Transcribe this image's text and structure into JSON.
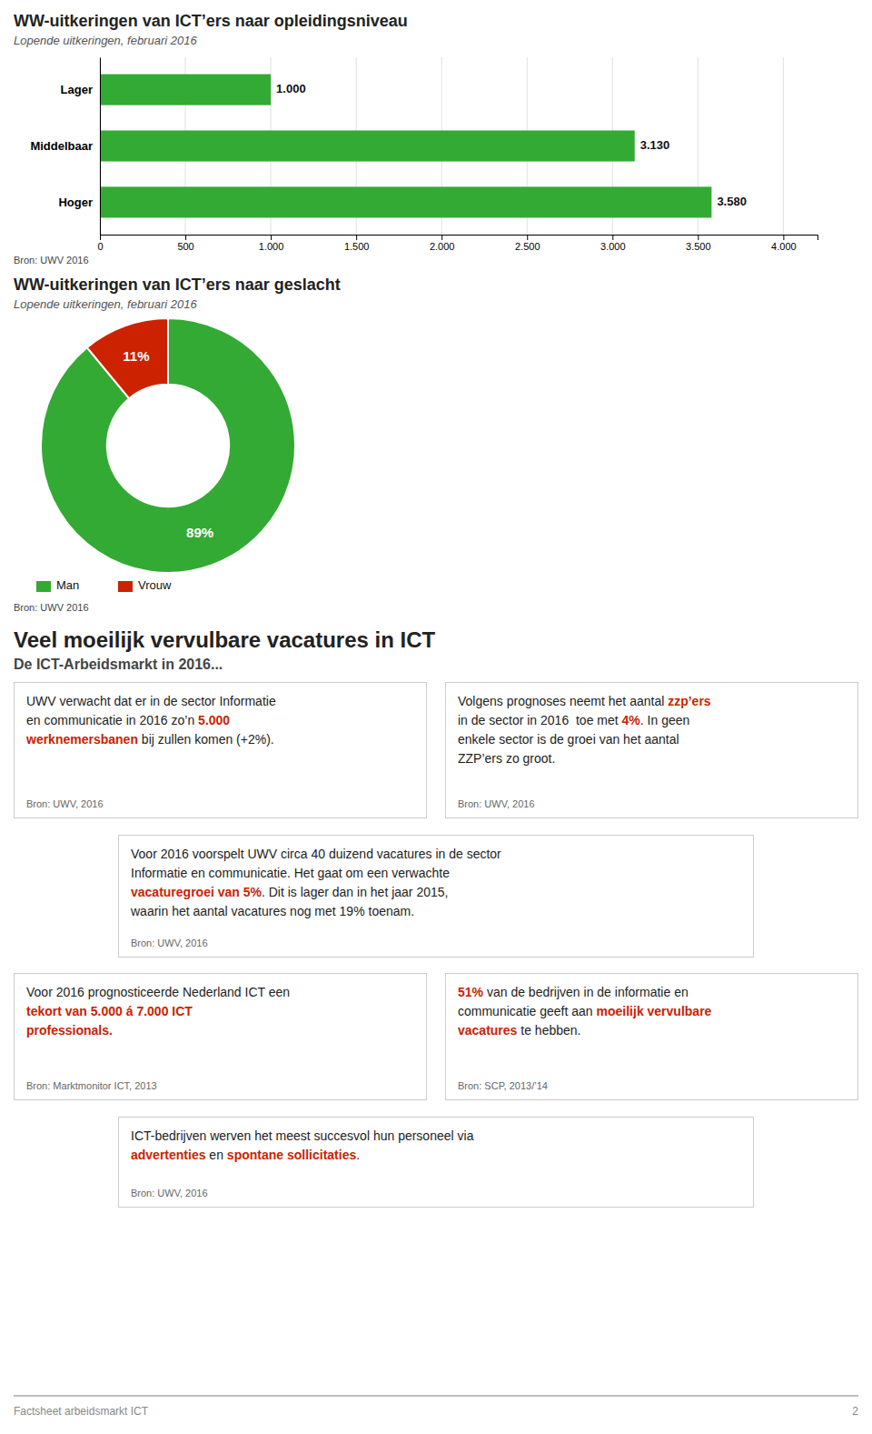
{
  "chart_data": [
    {
      "type": "bar",
      "orientation": "horizontal",
      "title": "WW-uitkeringen van ICT’ers naar opleidingsniveau",
      "subtitle": "Lopende uitkeringen, februari 2016",
      "categories": [
        "Lager",
        "Middelbaar",
        "Hoger"
      ],
      "values": [
        1000,
        3130,
        3580
      ],
      "value_labels": [
        "1.000",
        "3.130",
        "3.580"
      ],
      "data_labels": true,
      "color": "#33aa33",
      "xlim": [
        0,
        4200
      ],
      "xticks": [
        0,
        500,
        {
          "value": 1000,
          "label": "1.000"
        },
        {
          "value": 1500,
          "label": "1.500"
        },
        {
          "value": 2000,
          "label": "2.000"
        },
        {
          "value": 2500,
          "label": "2.500"
        },
        {
          "value": 3000,
          "label": "3.000"
        },
        {
          "value": 3500,
          "label": "3.500"
        },
        {
          "value": 4000,
          "label": "4.000"
        }
      ],
      "grid": true,
      "source": "Bron: UWV 2016"
    },
    {
      "type": "donut",
      "title": "WW-uitkeringen van ICT’ers naar geslacht",
      "subtitle": "Lopende uitkeringen, februari 2016",
      "categories": [
        "Man",
        "Vrouw"
      ],
      "values": [
        89,
        11
      ],
      "value_labels": [
        "89%",
        "11%"
      ],
      "data_labels": true,
      "colors": [
        "#33aa33",
        "#cc2200"
      ],
      "legend": "bottom",
      "source": "Bron: UWV 2016"
    }
  ],
  "section_title": "Veel moeilijk vervulbare vacatures in ICT",
  "section_subtitle": "De ICT-Arbeidsmarkt in 2016...",
  "boxes": [
    {
      "lines": [
        [
          {
            "text": "UWV verwacht dat er in de sector Informatie",
            "bold": false,
            "color": "#222222"
          }
        ],
        [
          {
            "text": "en communicatie in 2016 zo’n ",
            "bold": false,
            "color": "#222222"
          },
          {
            "text": "5.000",
            "bold": true,
            "color": "#cc2200"
          }
        ],
        [
          {
            "text": "werknemersbanen",
            "bold": true,
            "color": "#cc2200"
          },
          {
            "text": " bij zullen komen (+2%).",
            "bold": false,
            "color": "#222222"
          }
        ]
      ],
      "source": "Bron: UWV, 2016"
    },
    {
      "lines": [
        [
          {
            "text": "Volgens prognoses neemt het aantal ",
            "bold": false,
            "color": "#222222"
          },
          {
            "text": "zzp’ers",
            "bold": true,
            "color": "#cc2200"
          }
        ],
        [
          {
            "text": "in de sector in 2016  toe met ",
            "bold": false,
            "color": "#222222"
          },
          {
            "text": "4%",
            "bold": true,
            "color": "#cc2200"
          },
          {
            "text": ". In geen",
            "bold": false,
            "color": "#222222"
          }
        ],
        [
          {
            "text": "enkele sector is de groei van het aantal",
            "bold": false,
            "color": "#222222"
          }
        ],
        [
          {
            "text": "ZZP’ers zo groot.",
            "bold": false,
            "color": "#222222"
          }
        ]
      ],
      "source": "Bron: UWV, 2016"
    },
    {
      "lines": [
        [
          {
            "text": "Voor 2016 voorspelt UWV circa 40 duizend vacatures in de sector",
            "bold": false,
            "color": "#222222"
          }
        ],
        [
          {
            "text": "Informatie en communicatie. Het gaat om een verwachte",
            "bold": false,
            "color": "#222222"
          }
        ],
        [
          {
            "text": "vacaturegroei van 5%",
            "bold": true,
            "color": "#cc2200"
          },
          {
            "text": ". Dit is lager dan in het jaar 2015,",
            "bold": false,
            "color": "#222222"
          }
        ],
        [
          {
            "text": "waarin het aantal vacatures nog met 19% toenam.",
            "bold": false,
            "color": "#222222"
          }
        ]
      ],
      "source": "Bron: UWV, 2016"
    },
    {
      "lines": [
        [
          {
            "text": "Voor 2016 prognosticeerde Nederland ICT een",
            "bold": false,
            "color": "#222222"
          }
        ],
        [
          {
            "text": "tekort van 5.000 á 7.000 ICT",
            "bold": true,
            "color": "#cc2200"
          }
        ],
        [
          {
            "text": "professionals.",
            "bold": true,
            "color": "#cc2200"
          }
        ]
      ],
      "source": "Bron: Marktmonitor ICT, 2013"
    },
    {
      "lines": [
        [
          {
            "text": "51%",
            "bold": true,
            "color": "#cc2200"
          },
          {
            "text": " van de bedrijven in de informatie en",
            "bold": false,
            "color": "#222222"
          }
        ],
        [
          {
            "text": "communicatie geeft aan ",
            "bold": false,
            "color": "#222222"
          },
          {
            "text": "moeilijk vervulbare",
            "bold": true,
            "color": "#cc2200"
          }
        ],
        [
          {
            "text": "vacatures",
            "bold": true,
            "color": "#cc2200"
          },
          {
            "text": " te hebben.",
            "bold": false,
            "color": "#222222"
          }
        ]
      ],
      "source": "Bron: SCP, 2013/’14"
    },
    {
      "lines": [
        [
          {
            "text": "ICT-bedrijven werven het meest succesvol hun personeel via",
            "bold": false,
            "color": "#222222"
          }
        ],
        [
          {
            "text": "advertenties",
            "bold": true,
            "color": "#cc2200"
          },
          {
            "text": " en ",
            "bold": false,
            "color": "#222222"
          },
          {
            "text": "spontane sollicitaties",
            "bold": true,
            "color": "#cc2200"
          },
          {
            "text": ".",
            "bold": false,
            "color": "#222222"
          }
        ]
      ],
      "source": "Bron: UWV, 2016"
    }
  ],
  "footer_text": "Factsheet arbeidsmarkt ICT",
  "footer_page": "2"
}
